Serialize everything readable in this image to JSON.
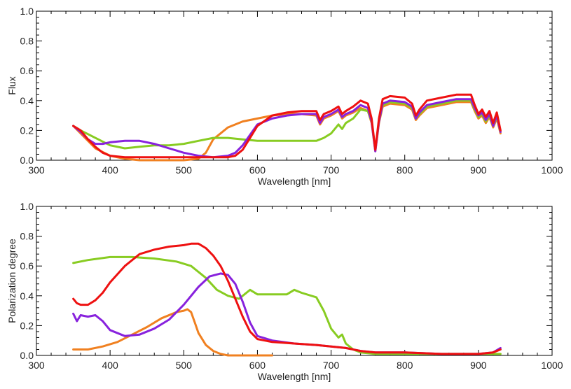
{
  "chart_data": [
    {
      "type": "line",
      "title": "",
      "xlabel": "Wavelength [nm]",
      "ylabel": "Flux",
      "xlim": [
        300,
        1000
      ],
      "ylim": [
        0.0,
        1.0
      ],
      "xticks": [
        300,
        400,
        500,
        600,
        700,
        800,
        900,
        1000
      ],
      "xtick_labels": [
        "300",
        "400",
        "500",
        "600",
        "700",
        "800",
        "900",
        "1000"
      ],
      "yticks": [
        0.0,
        0.2,
        0.4,
        0.6,
        0.8,
        1.0
      ],
      "ytick_labels": [
        "0.0",
        "0.2",
        "0.4",
        "0.6",
        "0.8",
        "1.0"
      ],
      "grid": false,
      "series": [
        {
          "color": "#f08020",
          "x": [
            350,
            360,
            380,
            400,
            420,
            440,
            460,
            480,
            500,
            520,
            530,
            540,
            560,
            580,
            600,
            620,
            640,
            660,
            680,
            685,
            690,
            700,
            710,
            715,
            720,
            730,
            740,
            750,
            755,
            760,
            765,
            770,
            780,
            800,
            810,
            815,
            820,
            830,
            850,
            870,
            890,
            895,
            900,
            905,
            910,
            915,
            920,
            925,
            930
          ],
          "y": [
            0.23,
            0.18,
            0.08,
            0.03,
            0.01,
            0.0,
            0.0,
            0.0,
            0.0,
            0.01,
            0.05,
            0.14,
            0.22,
            0.26,
            0.28,
            0.3,
            0.31,
            0.31,
            0.3,
            0.24,
            0.28,
            0.3,
            0.33,
            0.28,
            0.3,
            0.32,
            0.35,
            0.33,
            0.25,
            0.06,
            0.25,
            0.36,
            0.38,
            0.37,
            0.34,
            0.27,
            0.3,
            0.35,
            0.37,
            0.39,
            0.39,
            0.33,
            0.28,
            0.3,
            0.25,
            0.29,
            0.22,
            0.28,
            0.18
          ]
        },
        {
          "color": "#88cc22",
          "x": [
            350,
            360,
            380,
            400,
            420,
            440,
            460,
            480,
            500,
            520,
            540,
            560,
            580,
            600,
            620,
            640,
            660,
            680,
            690,
            700,
            710,
            715,
            720,
            730,
            740,
            750,
            755,
            760,
            765,
            770,
            780,
            800,
            810,
            815,
            820,
            830,
            850,
            870,
            890,
            895,
            900,
            905,
            910,
            915,
            920,
            925,
            930
          ],
          "y": [
            0.23,
            0.2,
            0.15,
            0.1,
            0.08,
            0.09,
            0.1,
            0.1,
            0.11,
            0.13,
            0.15,
            0.15,
            0.14,
            0.13,
            0.13,
            0.13,
            0.13,
            0.13,
            0.15,
            0.18,
            0.24,
            0.21,
            0.25,
            0.28,
            0.34,
            0.33,
            0.26,
            0.07,
            0.26,
            0.37,
            0.39,
            0.38,
            0.35,
            0.28,
            0.31,
            0.36,
            0.38,
            0.4,
            0.4,
            0.34,
            0.29,
            0.31,
            0.26,
            0.3,
            0.23,
            0.29,
            0.19
          ]
        },
        {
          "color": "#8822dd",
          "x": [
            350,
            360,
            370,
            380,
            390,
            400,
            420,
            440,
            460,
            480,
            500,
            520,
            540,
            560,
            570,
            580,
            590,
            600,
            620,
            640,
            660,
            680,
            685,
            690,
            700,
            710,
            715,
            720,
            730,
            740,
            750,
            755,
            760,
            765,
            770,
            780,
            800,
            810,
            815,
            820,
            830,
            850,
            870,
            890,
            895,
            900,
            905,
            910,
            915,
            920,
            925,
            930
          ],
          "y": [
            0.23,
            0.19,
            0.14,
            0.11,
            0.11,
            0.12,
            0.13,
            0.13,
            0.11,
            0.08,
            0.05,
            0.03,
            0.02,
            0.03,
            0.05,
            0.1,
            0.17,
            0.24,
            0.28,
            0.3,
            0.31,
            0.31,
            0.25,
            0.29,
            0.31,
            0.34,
            0.29,
            0.31,
            0.33,
            0.37,
            0.35,
            0.26,
            0.06,
            0.26,
            0.38,
            0.4,
            0.39,
            0.36,
            0.28,
            0.32,
            0.37,
            0.39,
            0.41,
            0.41,
            0.35,
            0.3,
            0.32,
            0.27,
            0.31,
            0.23,
            0.3,
            0.19
          ]
        },
        {
          "color": "#ee1111",
          "x": [
            350,
            360,
            370,
            380,
            390,
            400,
            420,
            440,
            460,
            480,
            500,
            520,
            540,
            560,
            570,
            580,
            590,
            600,
            620,
            640,
            660,
            680,
            685,
            690,
            700,
            710,
            715,
            720,
            730,
            740,
            750,
            755,
            760,
            765,
            770,
            780,
            800,
            810,
            815,
            820,
            830,
            850,
            870,
            890,
            895,
            900,
            905,
            910,
            915,
            920,
            925,
            930
          ],
          "y": [
            0.23,
            0.2,
            0.14,
            0.09,
            0.05,
            0.03,
            0.02,
            0.02,
            0.02,
            0.02,
            0.02,
            0.02,
            0.02,
            0.02,
            0.03,
            0.07,
            0.15,
            0.23,
            0.3,
            0.32,
            0.33,
            0.33,
            0.27,
            0.31,
            0.33,
            0.36,
            0.31,
            0.33,
            0.36,
            0.4,
            0.38,
            0.28,
            0.07,
            0.28,
            0.41,
            0.43,
            0.42,
            0.38,
            0.3,
            0.34,
            0.4,
            0.42,
            0.44,
            0.44,
            0.37,
            0.31,
            0.34,
            0.29,
            0.33,
            0.25,
            0.32,
            0.2
          ]
        }
      ]
    },
    {
      "type": "line",
      "title": "",
      "xlabel": "Wavelength [nm]",
      "ylabel": "Polarization degree",
      "xlim": [
        300,
        1000
      ],
      "ylim": [
        0.0,
        1.0
      ],
      "xticks": [
        300,
        400,
        500,
        600,
        700,
        800,
        900,
        1000
      ],
      "xtick_labels": [
        "300",
        "400",
        "500",
        "600",
        "700",
        "800",
        "900",
        "1000"
      ],
      "yticks": [
        0.0,
        0.2,
        0.4,
        0.6,
        0.8,
        1.0
      ],
      "ytick_labels": [
        "0.0",
        "0.2",
        "0.4",
        "0.6",
        "0.8",
        "1.0"
      ],
      "grid": false,
      "series": [
        {
          "color": "#f08020",
          "x": [
            350,
            370,
            390,
            410,
            430,
            450,
            470,
            490,
            500,
            505,
            510,
            515,
            520,
            530,
            540,
            550,
            560,
            580,
            600,
            620
          ],
          "y": [
            0.04,
            0.04,
            0.06,
            0.09,
            0.14,
            0.19,
            0.25,
            0.29,
            0.3,
            0.31,
            0.29,
            0.22,
            0.15,
            0.07,
            0.03,
            0.01,
            0.0,
            0.0,
            0.0,
            0.0
          ]
        },
        {
          "color": "#88cc22",
          "x": [
            350,
            370,
            400,
            430,
            460,
            490,
            510,
            530,
            545,
            560,
            575,
            590,
            600,
            610,
            620,
            640,
            650,
            660,
            680,
            690,
            700,
            710,
            715,
            720,
            730,
            740,
            760,
            800,
            850,
            900,
            930
          ],
          "y": [
            0.62,
            0.64,
            0.66,
            0.66,
            0.65,
            0.63,
            0.6,
            0.52,
            0.44,
            0.4,
            0.38,
            0.44,
            0.41,
            0.41,
            0.41,
            0.41,
            0.44,
            0.42,
            0.39,
            0.3,
            0.18,
            0.12,
            0.14,
            0.08,
            0.04,
            0.02,
            0.01,
            0.01,
            0.01,
            0.01,
            0.01
          ]
        },
        {
          "color": "#8822dd",
          "x": [
            350,
            355,
            360,
            370,
            380,
            390,
            400,
            420,
            440,
            460,
            480,
            500,
            520,
            535,
            550,
            560,
            570,
            580,
            590,
            600,
            620,
            650,
            680,
            700,
            720,
            740,
            760,
            780,
            800,
            850,
            900,
            920,
            930
          ],
          "y": [
            0.28,
            0.23,
            0.27,
            0.26,
            0.27,
            0.23,
            0.17,
            0.13,
            0.14,
            0.18,
            0.24,
            0.34,
            0.46,
            0.53,
            0.55,
            0.54,
            0.48,
            0.36,
            0.22,
            0.13,
            0.1,
            0.08,
            0.07,
            0.06,
            0.05,
            0.03,
            0.02,
            0.02,
            0.02,
            0.01,
            0.01,
            0.02,
            0.05
          ]
        },
        {
          "color": "#ee1111",
          "x": [
            350,
            355,
            360,
            370,
            380,
            390,
            400,
            420,
            440,
            460,
            480,
            500,
            510,
            520,
            530,
            540,
            550,
            560,
            570,
            580,
            590,
            600,
            620,
            650,
            680,
            700,
            720,
            740,
            760,
            780,
            800,
            850,
            900,
            920,
            930
          ],
          "y": [
            0.38,
            0.35,
            0.34,
            0.34,
            0.37,
            0.42,
            0.49,
            0.6,
            0.68,
            0.71,
            0.73,
            0.74,
            0.75,
            0.75,
            0.72,
            0.67,
            0.6,
            0.5,
            0.38,
            0.26,
            0.16,
            0.11,
            0.09,
            0.08,
            0.07,
            0.06,
            0.05,
            0.03,
            0.02,
            0.02,
            0.02,
            0.01,
            0.01,
            0.02,
            0.04
          ]
        }
      ]
    }
  ]
}
